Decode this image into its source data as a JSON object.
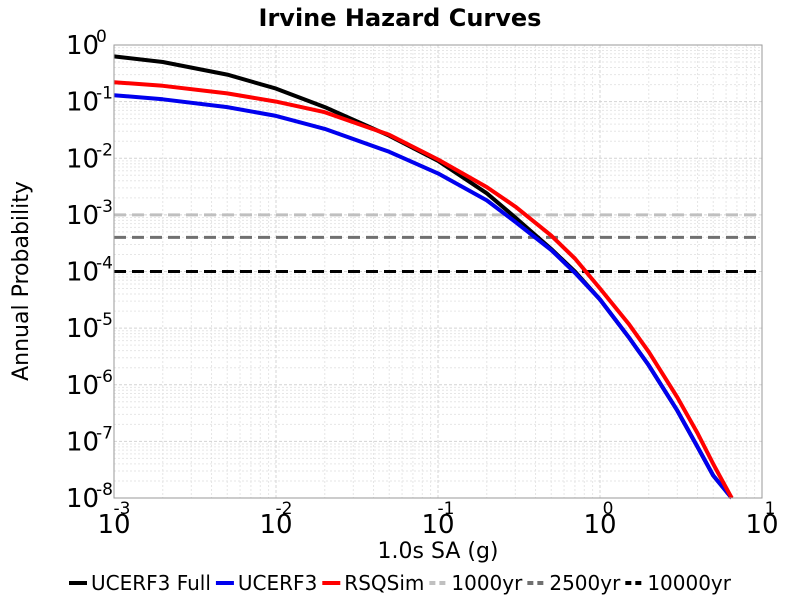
{
  "chart_data": {
    "type": "line",
    "title": "Irvine Hazard Curves",
    "xlabel": "1.0s SA (g)",
    "ylabel": "Annual Probability",
    "xscale": "log",
    "yscale": "log",
    "xlim": [
      0.001,
      10
    ],
    "ylim": [
      1e-08,
      1
    ],
    "x_ticks": [
      {
        "base": "10",
        "exp": "-3"
      },
      {
        "base": "10",
        "exp": "-2"
      },
      {
        "base": "10",
        "exp": "-1"
      },
      {
        "base": "10",
        "exp": "0"
      },
      {
        "base": "10",
        "exp": "1"
      }
    ],
    "y_ticks": [
      {
        "base": "10",
        "exp": "0"
      },
      {
        "base": "10",
        "exp": "-1"
      },
      {
        "base": "10",
        "exp": "-2"
      },
      {
        "base": "10",
        "exp": "-3"
      },
      {
        "base": "10",
        "exp": "-4"
      },
      {
        "base": "10",
        "exp": "-5"
      },
      {
        "base": "10",
        "exp": "-6"
      },
      {
        "base": "10",
        "exp": "-7"
      },
      {
        "base": "10",
        "exp": "-8"
      }
    ],
    "grid": true,
    "legend_position": "bottom",
    "series": [
      {
        "name": "UCERF3 Full",
        "color": "#000000",
        "style": "solid",
        "x": [
          0.001,
          0.002,
          0.005,
          0.01,
          0.02,
          0.05,
          0.1,
          0.2,
          0.3,
          0.5,
          0.7,
          1.0,
          1.5,
          2.0,
          3.0,
          4.0,
          5.0,
          6.5
        ],
        "y": [
          0.63,
          0.5,
          0.3,
          0.17,
          0.08,
          0.025,
          0.009,
          0.0024,
          0.0009,
          0.00025,
          0.0001,
          3.2e-05,
          7e-06,
          2.2e-06,
          3.5e-07,
          8e-08,
          2.5e-08,
          1e-08
        ]
      },
      {
        "name": "UCERF3",
        "color": "#0000ee",
        "style": "solid",
        "x": [
          0.001,
          0.002,
          0.005,
          0.01,
          0.02,
          0.05,
          0.1,
          0.2,
          0.3,
          0.5,
          0.7,
          1.0,
          1.5,
          2.0,
          3.0,
          4.0,
          5.0,
          6.5
        ],
        "y": [
          0.13,
          0.11,
          0.08,
          0.056,
          0.033,
          0.013,
          0.0054,
          0.0018,
          0.00075,
          0.00024,
          9.5e-05,
          3.2e-05,
          7e-06,
          2.2e-06,
          3.5e-07,
          8e-08,
          2.5e-08,
          1e-08
        ]
      },
      {
        "name": "RSQSim",
        "color": "#ff0000",
        "style": "solid",
        "x": [
          0.001,
          0.002,
          0.005,
          0.01,
          0.02,
          0.05,
          0.1,
          0.2,
          0.3,
          0.5,
          0.7,
          1.0,
          1.5,
          2.0,
          3.0,
          4.0,
          5.0,
          6.5
        ],
        "y": [
          0.22,
          0.19,
          0.14,
          0.1,
          0.065,
          0.026,
          0.0095,
          0.0031,
          0.0014,
          0.00043,
          0.00017,
          5e-05,
          1.2e-05,
          3.8e-06,
          6e-07,
          1.4e-07,
          4e-08,
          1e-08
        ]
      },
      {
        "name": "1000yr",
        "color": "#c0c0c0",
        "style": "dashed",
        "x": [
          0.001,
          10
        ],
        "y": [
          0.001,
          0.001
        ]
      },
      {
        "name": "2500yr",
        "color": "#707070",
        "style": "dashed",
        "x": [
          0.001,
          10
        ],
        "y": [
          0.0004,
          0.0004
        ]
      },
      {
        "name": "10000yr",
        "color": "#000000",
        "style": "dashed",
        "x": [
          0.001,
          10
        ],
        "y": [
          0.0001,
          0.0001
        ]
      }
    ]
  }
}
